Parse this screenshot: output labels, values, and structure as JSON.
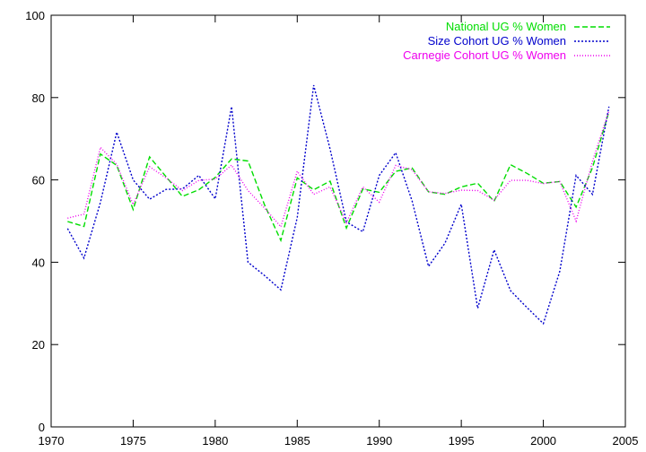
{
  "chart_data": {
    "type": "line",
    "title": "",
    "xlabel": "",
    "ylabel": "",
    "xlim": [
      1970,
      2005
    ],
    "ylim": [
      0,
      100
    ],
    "xticks": [
      1970,
      1975,
      1980,
      1985,
      1990,
      1995,
      2000,
      2005
    ],
    "yticks": [
      0,
      20,
      40,
      60,
      80,
      100
    ],
    "grid": false,
    "legend_position": "top-right",
    "x": [
      1971,
      1972,
      1973,
      1974,
      1975,
      1976,
      1977,
      1978,
      1979,
      1980,
      1981,
      1982,
      1983,
      1984,
      1985,
      1986,
      1987,
      1988,
      1989,
      1990,
      1991,
      1992,
      1993,
      1994,
      1995,
      1996,
      1997,
      1998,
      1999,
      2000,
      2001,
      2002,
      2003,
      2004
    ],
    "series": [
      {
        "name": "National UG % Women",
        "color": "#00dd00",
        "dash": "dashed",
        "values": [
          49.9,
          48.7,
          66.3,
          63.5,
          52.8,
          65.6,
          60.8,
          56.0,
          57.6,
          60.6,
          65.1,
          64.6,
          54.0,
          45.3,
          60.5,
          57.6,
          59.7,
          48.3,
          57.8,
          57.0,
          62.1,
          62.9,
          57.1,
          56.5,
          58.3,
          59.2,
          54.8,
          63.7,
          61.6,
          59.2,
          59.6,
          53.4,
          63.0,
          76.6
        ]
      },
      {
        "name": "Size Cohort UG % Women",
        "color": "#0000cc",
        "dash": "dotted",
        "values": [
          48.2,
          41.0,
          54.5,
          71.6,
          60.0,
          55.3,
          57.7,
          57.8,
          61.1,
          55.4,
          77.8,
          40.0,
          36.8,
          33.3,
          50.9,
          83.0,
          67.5,
          49.8,
          47.4,
          61.1,
          66.6,
          54.9,
          39.0,
          44.6,
          54.1,
          28.8,
          43.0,
          33.1,
          29.0,
          25.1,
          37.8,
          61.1,
          56.5,
          77.8
        ]
      },
      {
        "name": "Carnegie Cohort UG % Women",
        "color": "#ee00ee",
        "dash": "dotted-fine",
        "values": [
          50.7,
          51.7,
          67.9,
          63.8,
          54.0,
          63.2,
          60.5,
          57.4,
          59.9,
          60.2,
          63.6,
          57.4,
          53.2,
          48.6,
          62.1,
          56.5,
          58.3,
          49.6,
          58.3,
          54.6,
          63.5,
          62.5,
          57.1,
          56.7,
          57.5,
          57.4,
          55.1,
          59.9,
          59.9,
          59.1,
          59.6,
          50.0,
          64.5,
          76.8
        ]
      }
    ]
  }
}
